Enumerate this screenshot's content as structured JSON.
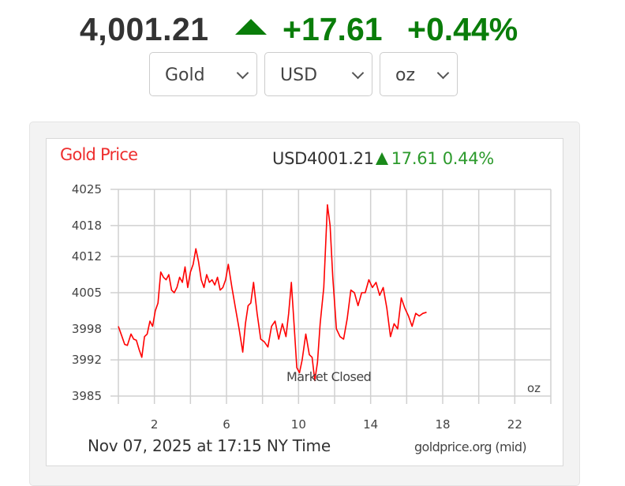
{
  "ticker": {
    "price": "4,001.21",
    "direction": "up",
    "direction_icon": "triangle-up-icon",
    "change": "+17.61",
    "change_percent": "+0.44%",
    "up_color": "#0a7d0a"
  },
  "selectors": {
    "metal": {
      "value": "Gold"
    },
    "currency": {
      "value": "USD"
    },
    "unit": {
      "value": "oz"
    }
  },
  "chart_header": {
    "title": "Gold Price",
    "title_color": "#ee2e2e",
    "quote_price": "USD4001.21",
    "quote_change": "17.61",
    "quote_percent": "0.44%"
  },
  "chart_annotations": {
    "market_closed": "Market Closed",
    "unit": "oz",
    "date": "Nov 07, 2025 at 17:15 NY Time",
    "source": "goldprice.org (mid)"
  },
  "chart_data": {
    "type": "line",
    "title": "Gold Price",
    "subtitle": "USD4001.21 ▲ 17.61 0.44%",
    "xlabel": "Nov 07, 2025 at 17:15 NY Time",
    "ylabel": "",
    "unit": "oz",
    "source": "goldprice.org (mid)",
    "xlim": [
      0,
      24
    ],
    "ylim": [
      3985,
      4025
    ],
    "x_ticks": [
      2,
      6,
      10,
      14,
      18,
      22
    ],
    "y_ticks": [
      4025,
      4018,
      4012,
      4005,
      3998,
      3992,
      3985
    ],
    "grid": true,
    "legend": null,
    "line_color": "#ff0000",
    "annotations": [
      {
        "text": "Market Closed",
        "x": 11.3,
        "y": 3989
      }
    ],
    "series": [
      {
        "name": "Gold Price (USD/oz)",
        "x": [
          0.0,
          0.2,
          0.35,
          0.5,
          0.7,
          0.85,
          1.0,
          1.15,
          1.3,
          1.45,
          1.6,
          1.75,
          1.9,
          2.05,
          2.2,
          2.35,
          2.5,
          2.65,
          2.8,
          2.95,
          3.1,
          3.25,
          3.4,
          3.55,
          3.7,
          3.85,
          4.0,
          4.15,
          4.3,
          4.45,
          4.6,
          4.75,
          4.9,
          5.05,
          5.2,
          5.35,
          5.5,
          5.65,
          5.8,
          5.95,
          6.1,
          6.3,
          6.5,
          6.7,
          6.9,
          7.05,
          7.2,
          7.35,
          7.5,
          7.7,
          7.9,
          8.1,
          8.3,
          8.5,
          8.7,
          8.9,
          9.1,
          9.3,
          9.45,
          9.6,
          9.75,
          9.9,
          10.05,
          10.2,
          10.4,
          10.6,
          10.75,
          10.9,
          11.05,
          11.2,
          11.4,
          11.6,
          11.75,
          11.9,
          12.1,
          12.3,
          12.5,
          12.7,
          12.9,
          13.1,
          13.3,
          13.5,
          13.7,
          13.9,
          14.1,
          14.3,
          14.5,
          14.7,
          14.9,
          15.1,
          15.3,
          15.5,
          15.7,
          15.9,
          16.1,
          16.3,
          16.5,
          16.7,
          16.9,
          17.1
        ],
        "values": [
          3998.5,
          3996.5,
          3995.0,
          3994.8,
          3997.0,
          3996.0,
          3995.8,
          3994.0,
          3992.5,
          3996.5,
          3997.0,
          3999.5,
          3998.5,
          4001.5,
          4003.0,
          4009.0,
          4008.0,
          4007.5,
          4008.5,
          4005.5,
          4005.0,
          4006.0,
          4008.0,
          4007.0,
          4010.0,
          4006.0,
          4009.0,
          4010.5,
          4013.5,
          4011.0,
          4007.5,
          4006.0,
          4008.5,
          4007.0,
          4007.5,
          4006.5,
          4008.0,
          4005.5,
          4006.0,
          4007.5,
          4010.5,
          4006.0,
          4002.0,
          3998.0,
          3993.5,
          3999.0,
          4002.5,
          4003.0,
          4007.0,
          4001.0,
          3996.0,
          3995.5,
          3994.5,
          3998.5,
          3999.5,
          3996.0,
          3999.0,
          3996.5,
          4001.0,
          4007.0,
          3999.0,
          3990.5,
          3989.5,
          3992.0,
          3997.0,
          3993.0,
          3992.5,
          3988.0,
          3991.5,
          3999.0,
          4006.0,
          4022.0,
          4018.0,
          4008.0,
          3998.0,
          3996.5,
          3996.0,
          4000.0,
          4005.5,
          4005.0,
          4002.5,
          4005.0,
          4005.0,
          4007.5,
          4006.0,
          4007.0,
          4004.5,
          4006.0,
          4002.0,
          3996.5,
          3999.0,
          3998.0,
          4004.0,
          4002.0,
          4000.5,
          3998.5,
          4001.0,
          4000.5,
          4001.0,
          4001.21
        ]
      }
    ]
  }
}
